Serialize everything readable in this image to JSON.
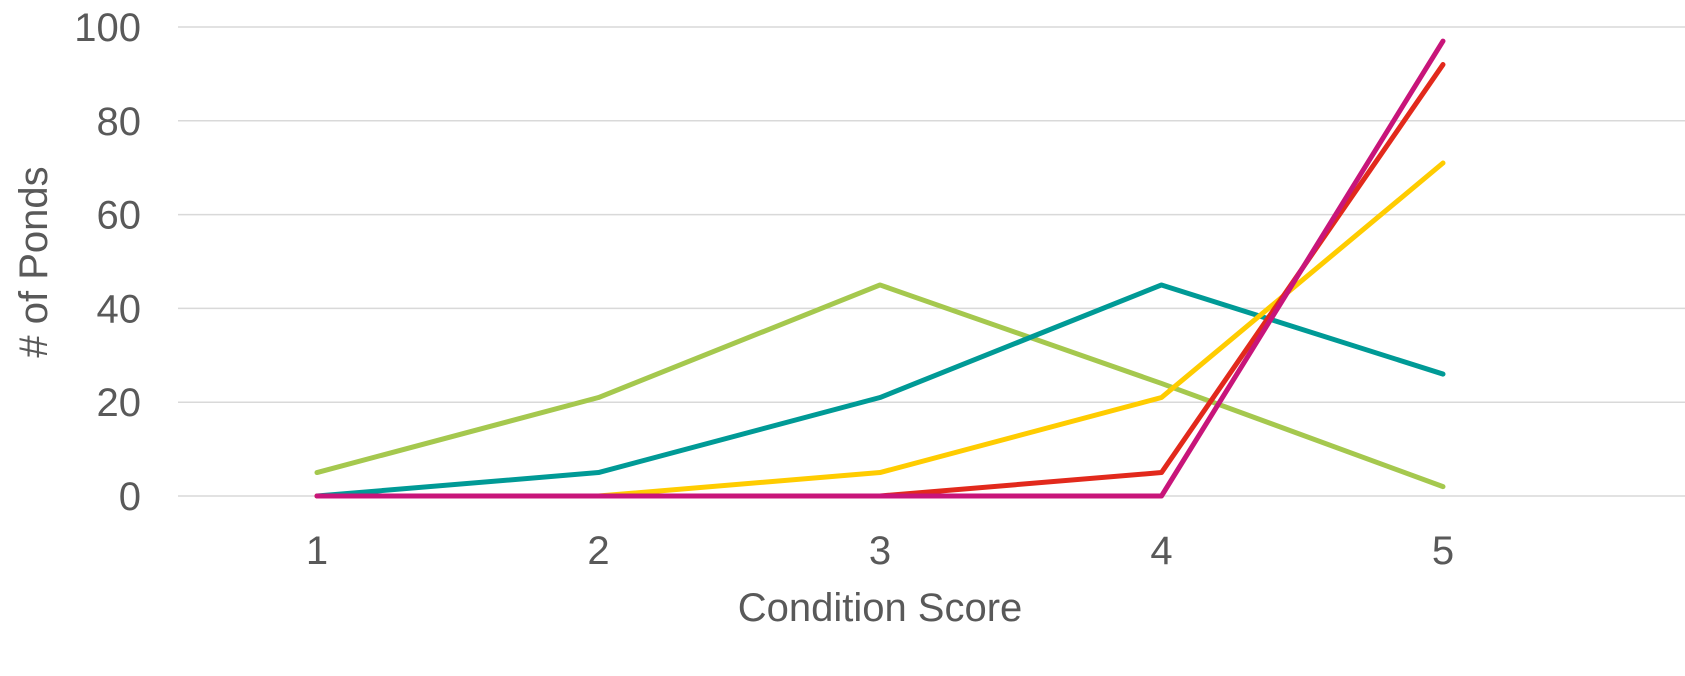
{
  "chart_data": {
    "type": "line",
    "title": "",
    "xlabel": "Condition Score",
    "ylabel": "# of Ponds",
    "categories": [
      "1",
      "2",
      "3",
      "4",
      "5"
    ],
    "ylim": [
      0,
      100
    ],
    "yticks": [
      0,
      20,
      40,
      60,
      80,
      100
    ],
    "grid": true,
    "legend": "none",
    "series": [
      {
        "color": "#a5c84e",
        "values": [
          5,
          21,
          45,
          24,
          2
        ]
      },
      {
        "color": "#009a96",
        "values": [
          0,
          5,
          21,
          45,
          26
        ]
      },
      {
        "color": "#ffcc00",
        "values": [
          0,
          0,
          5,
          21,
          71
        ]
      },
      {
        "color": "#e2291c",
        "values": [
          0,
          0,
          0,
          5,
          92
        ]
      },
      {
        "color": "#c8157a",
        "values": [
          0,
          0,
          0,
          0,
          97
        ]
      }
    ]
  }
}
